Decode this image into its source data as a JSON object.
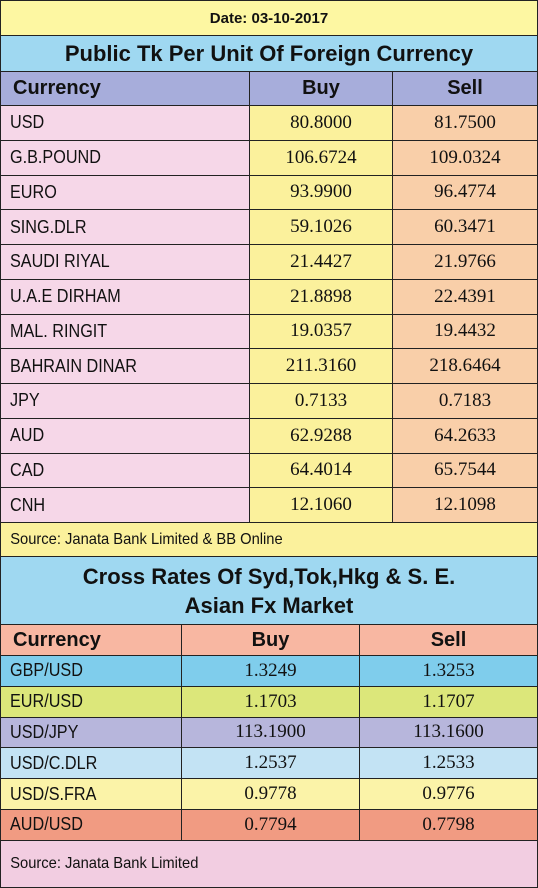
{
  "date_label": "Date: 03-10-2017",
  "section1": {
    "title": "Public Tk Per Unit Of Foreign Currency",
    "headers": [
      "Currency",
      "Buy",
      "Sell"
    ],
    "rows": [
      [
        "USD",
        "80.8000",
        "81.7500"
      ],
      [
        "G.B.POUND",
        "106.6724",
        "109.0324"
      ],
      [
        "EURO",
        "93.9900",
        "96.4774"
      ],
      [
        "SING.DLR",
        "59.1026",
        "60.3471"
      ],
      [
        "SAUDI RIYAL",
        "21.4427",
        "21.9766"
      ],
      [
        "U.A.E DIRHAM",
        "21.8898",
        "22.4391"
      ],
      [
        "MAL. RINGIT",
        "19.0357",
        "19.4432"
      ],
      [
        "BAHRAIN DINAR",
        "211.3160",
        "218.6464"
      ],
      [
        "JPY",
        "0.7133",
        "0.7183"
      ],
      [
        "AUD",
        "62.9288",
        "64.2633"
      ],
      [
        "CAD",
        "64.4014",
        "65.7544"
      ],
      [
        "CNH",
        "12.1060",
        "12.1098"
      ]
    ],
    "source": "Source: Janata Bank Limited & BB Online"
  },
  "section2": {
    "title_line1": "Cross Rates Of Syd,Tok,Hkg & S. E.",
    "title_line2": "Asian Fx Market",
    "headers": [
      "Currency",
      "Buy",
      "Sell"
    ],
    "rows": [
      [
        "GBP/USD",
        "1.3249",
        "1.3253"
      ],
      [
        "EUR/USD",
        "1.1703",
        "1.1707"
      ],
      [
        "USD/JPY",
        "113.1900",
        "113.1600"
      ],
      [
        "USD/C.DLR",
        "1.2537",
        "1.2533"
      ],
      [
        "USD/S.FRA",
        "0.9778",
        "0.9776"
      ],
      [
        "AUD/USD",
        "0.7794",
        "0.7798"
      ]
    ],
    "source": "Source: Janata Bank Limited"
  },
  "colors": {
    "date_bg": "#fdf7a2",
    "title_bg": "#9fd8f1",
    "header_bg": "#a7addb",
    "currency_bg": "#f6d7e8",
    "buy_bg": "#fbf19c",
    "sell_bg": "#f9cfa9",
    "source1_bg": "#fbf19c",
    "section2_header_bg": "#f8b7a2",
    "section2_row_colors": [
      "#7fcdec",
      "#dce77a",
      "#b7b6dc",
      "#c3e3f4",
      "#fbf3a8",
      "#f19b82"
    ],
    "source2_bg": "#f2cde1"
  }
}
